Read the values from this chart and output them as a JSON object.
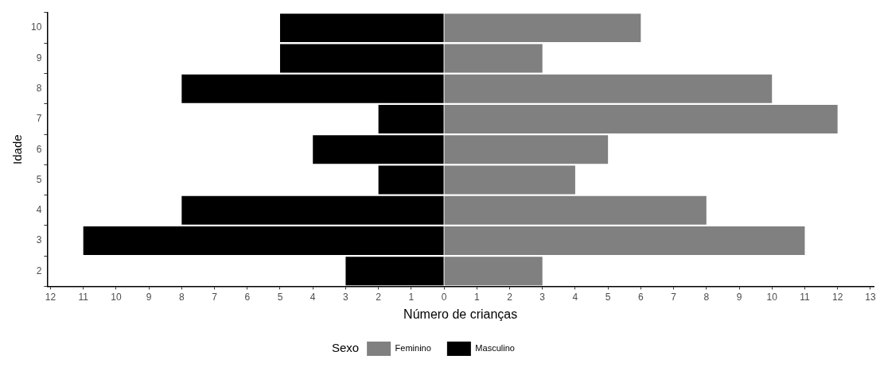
{
  "chart_data": {
    "type": "bar",
    "orientation": "horizontal",
    "stacked": true,
    "xlabel": "Número de crianças",
    "ylabel": "Idade",
    "legend_title": "Sexo",
    "legend": "bottom",
    "grid": false,
    "categories": [
      "10",
      "9",
      "8",
      "7",
      "6",
      "5",
      "4",
      "3",
      "2"
    ],
    "series": [
      {
        "name": "Feminino",
        "color": "#808080",
        "values": [
          6,
          3,
          10,
          12,
          5,
          4,
          8,
          11,
          3
        ]
      },
      {
        "name": "Masculino",
        "color": "#000000",
        "values": [
          -5,
          -5,
          -8,
          -2,
          -4,
          -2,
          -8,
          -11,
          -3
        ]
      }
    ],
    "xlim": [
      -12.1,
      13.1
    ],
    "xticks": [
      {
        "value": -12,
        "label": "12"
      },
      {
        "value": -11,
        "label": "11"
      },
      {
        "value": -10,
        "label": "10"
      },
      {
        "value": -9,
        "label": "9"
      },
      {
        "value": -8,
        "label": "8"
      },
      {
        "value": -7,
        "label": "7"
      },
      {
        "value": -6,
        "label": "6"
      },
      {
        "value": -5,
        "label": "5"
      },
      {
        "value": -4,
        "label": "4"
      },
      {
        "value": -3,
        "label": "3"
      },
      {
        "value": -2,
        "label": "2"
      },
      {
        "value": -1,
        "label": "1"
      },
      0,
      1,
      2,
      3,
      4,
      5,
      6,
      7,
      8,
      9,
      10,
      11,
      12,
      13
    ]
  }
}
